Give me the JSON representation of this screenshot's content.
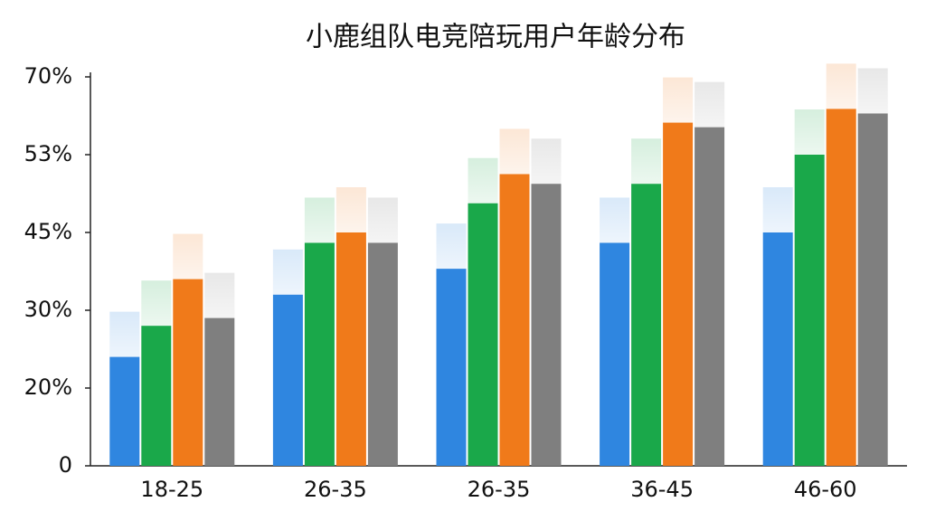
{
  "chart_data": {
    "type": "bar",
    "title": "小鹿组队电竞陪玩用户年龄分布",
    "categories": [
      "18-25",
      "26-35",
      "26-35",
      "36-45",
      "46-60"
    ],
    "series": [
      {
        "color": "#2f86e0",
        "values": [
          24,
          33,
          38,
          43,
          45
        ]
      },
      {
        "color": "#1aa84a",
        "values": [
          28,
          43,
          48,
          50,
          53
        ]
      },
      {
        "color": "#f07a1a",
        "values": [
          36,
          45,
          51,
          60,
          63
        ]
      },
      {
        "color": "#7f7f7f",
        "values": [
          29,
          43,
          50,
          59,
          62
        ]
      }
    ],
    "ylim": [
      0,
      70
    ],
    "yticks": [
      {
        "value": 0,
        "label": "0"
      },
      {
        "value": 20,
        "label": "20%"
      },
      {
        "value": 30,
        "label": "30%"
      },
      {
        "value": 45,
        "label": "45%"
      },
      {
        "value": 53,
        "label": "53%"
      },
      {
        "value": 70,
        "label": "70%"
      }
    ]
  }
}
